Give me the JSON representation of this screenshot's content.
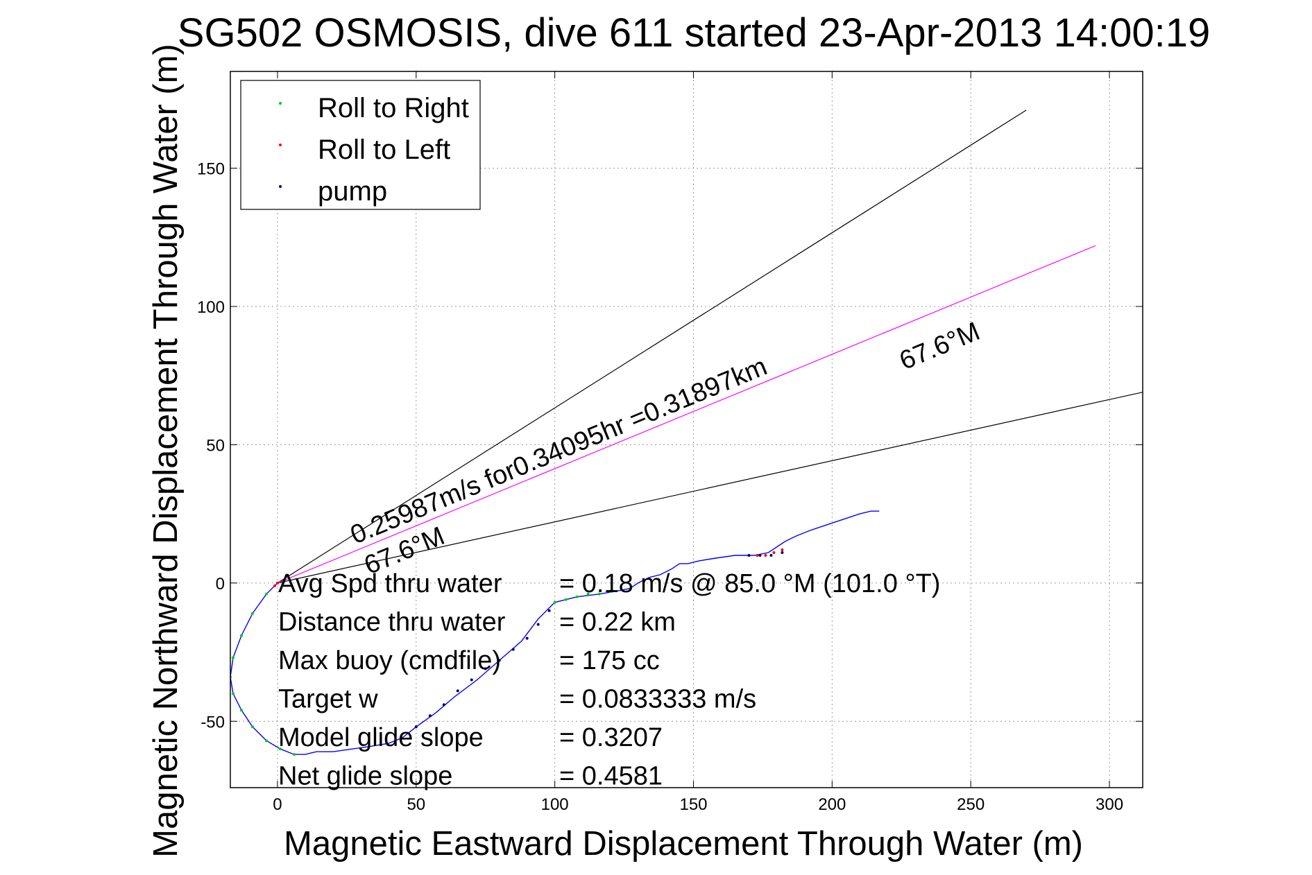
{
  "chart_data": {
    "type": "line",
    "title": "SG502 OSMOSIS, dive 611 started 23-Apr-2013 14:00:19",
    "xlabel": "Magnetic Eastward Displacement Through Water (m)",
    "ylabel": "Magnetic Northward Displacement Through Water (m)",
    "xlim": [
      -17,
      312
    ],
    "ylim": [
      -74,
      185
    ],
    "xticks": [
      0,
      50,
      100,
      150,
      200,
      250,
      300
    ],
    "yticks": [
      -50,
      0,
      50,
      100,
      150
    ],
    "grid": true,
    "legend_position": "top-left",
    "legend": [
      {
        "label": "Roll to Right",
        "color": "#00cc00"
      },
      {
        "label": "Roll to Left",
        "color": "#ff0000"
      },
      {
        "label": "pump",
        "color": "#000066"
      }
    ],
    "lines": [
      {
        "role": "upper-bound",
        "color": "#000000",
        "x": [
          0,
          270
        ],
        "y": [
          0,
          171
        ]
      },
      {
        "role": "lower-bound",
        "color": "#000000",
        "x": [
          0,
          312
        ],
        "y": [
          0,
          69
        ]
      },
      {
        "role": "average-heading",
        "color": "#ff00ff",
        "x": [
          0,
          295
        ],
        "y": [
          0,
          122
        ]
      }
    ],
    "track": {
      "color": "#0000ff",
      "x": [
        0,
        -4,
        -9,
        -13,
        -16,
        -17,
        -16,
        -13,
        -9,
        -4,
        1,
        6,
        10,
        14,
        20,
        27,
        34,
        40,
        45,
        50,
        57,
        64,
        72,
        80,
        88,
        94,
        100,
        108,
        116,
        122,
        127,
        130,
        134,
        138,
        142,
        145,
        148,
        152,
        158,
        165,
        172,
        177,
        180,
        183,
        187,
        192,
        198,
        204,
        210,
        214,
        217
      ],
      "y": [
        0,
        -4,
        -11,
        -19,
        -27,
        -34,
        -40,
        -46,
        -52,
        -57,
        -60,
        -62,
        -62,
        -61,
        -61,
        -60,
        -59,
        -58,
        -56,
        -52,
        -47,
        -41,
        -35,
        -28,
        -21,
        -13,
        -7,
        -5,
        -4,
        -3,
        -2,
        0,
        2,
        3,
        5,
        7,
        7,
        8,
        9,
        10,
        10,
        11,
        13,
        15,
        17,
        19,
        21,
        23,
        25,
        26,
        26
      ]
    },
    "roll_right": {
      "color": "#00cc00",
      "x": [
        0,
        -4,
        -9,
        -13,
        -16,
        -17,
        -16,
        -13,
        -9,
        -4,
        1,
        6,
        100,
        104,
        108,
        112,
        116,
        120
      ],
      "y": [
        0,
        -4,
        -11,
        -19,
        -27,
        -34,
        -40,
        -46,
        -52,
        -57,
        -60,
        -62,
        -7,
        -6,
        -5,
        -4,
        -4,
        -3
      ]
    },
    "roll_left": {
      "color": "#ff0000",
      "x": [
        170,
        173,
        176,
        179,
        182,
        -1,
        0
      ],
      "y": [
        10,
        10,
        10,
        11,
        12,
        -1,
        0
      ]
    },
    "pump": {
      "color": "#000066",
      "x": [
        50,
        55,
        60,
        65,
        70,
        75,
        80,
        85,
        90,
        94,
        98,
        170,
        174,
        178,
        182
      ],
      "y": [
        -52,
        -48,
        -44,
        -39,
        -35,
        -31,
        -28,
        -24,
        -20,
        -15,
        -10,
        10,
        10,
        10,
        11
      ]
    },
    "annotations": [
      {
        "text": "0.25987m/s for0.34095hr =0.31897km",
        "x": 28,
        "y": 14,
        "angle": -22.5
      },
      {
        "text": "67.6°M",
        "x": 33,
        "y": 3,
        "angle": -22.5
      },
      {
        "text": "67.6°M",
        "x": 226,
        "y": 77,
        "angle": -22.5
      }
    ],
    "stats": [
      {
        "label": "Avg Spd thru water",
        "value": "=  0.18 m/s @  85.0 °M (101.0 °T)"
      },
      {
        "label": "Distance thru water",
        "value": "=  0.22 km"
      },
      {
        "label": "Max buoy (cmdfile)",
        "value": "= 175 cc"
      },
      {
        "label": "Target w",
        "value": "= 0.0833333 m/s"
      },
      {
        "label": "Model glide slope",
        "value": "= 0.3207"
      },
      {
        "label": "Net glide slope",
        "value": "= 0.4581"
      }
    ]
  }
}
